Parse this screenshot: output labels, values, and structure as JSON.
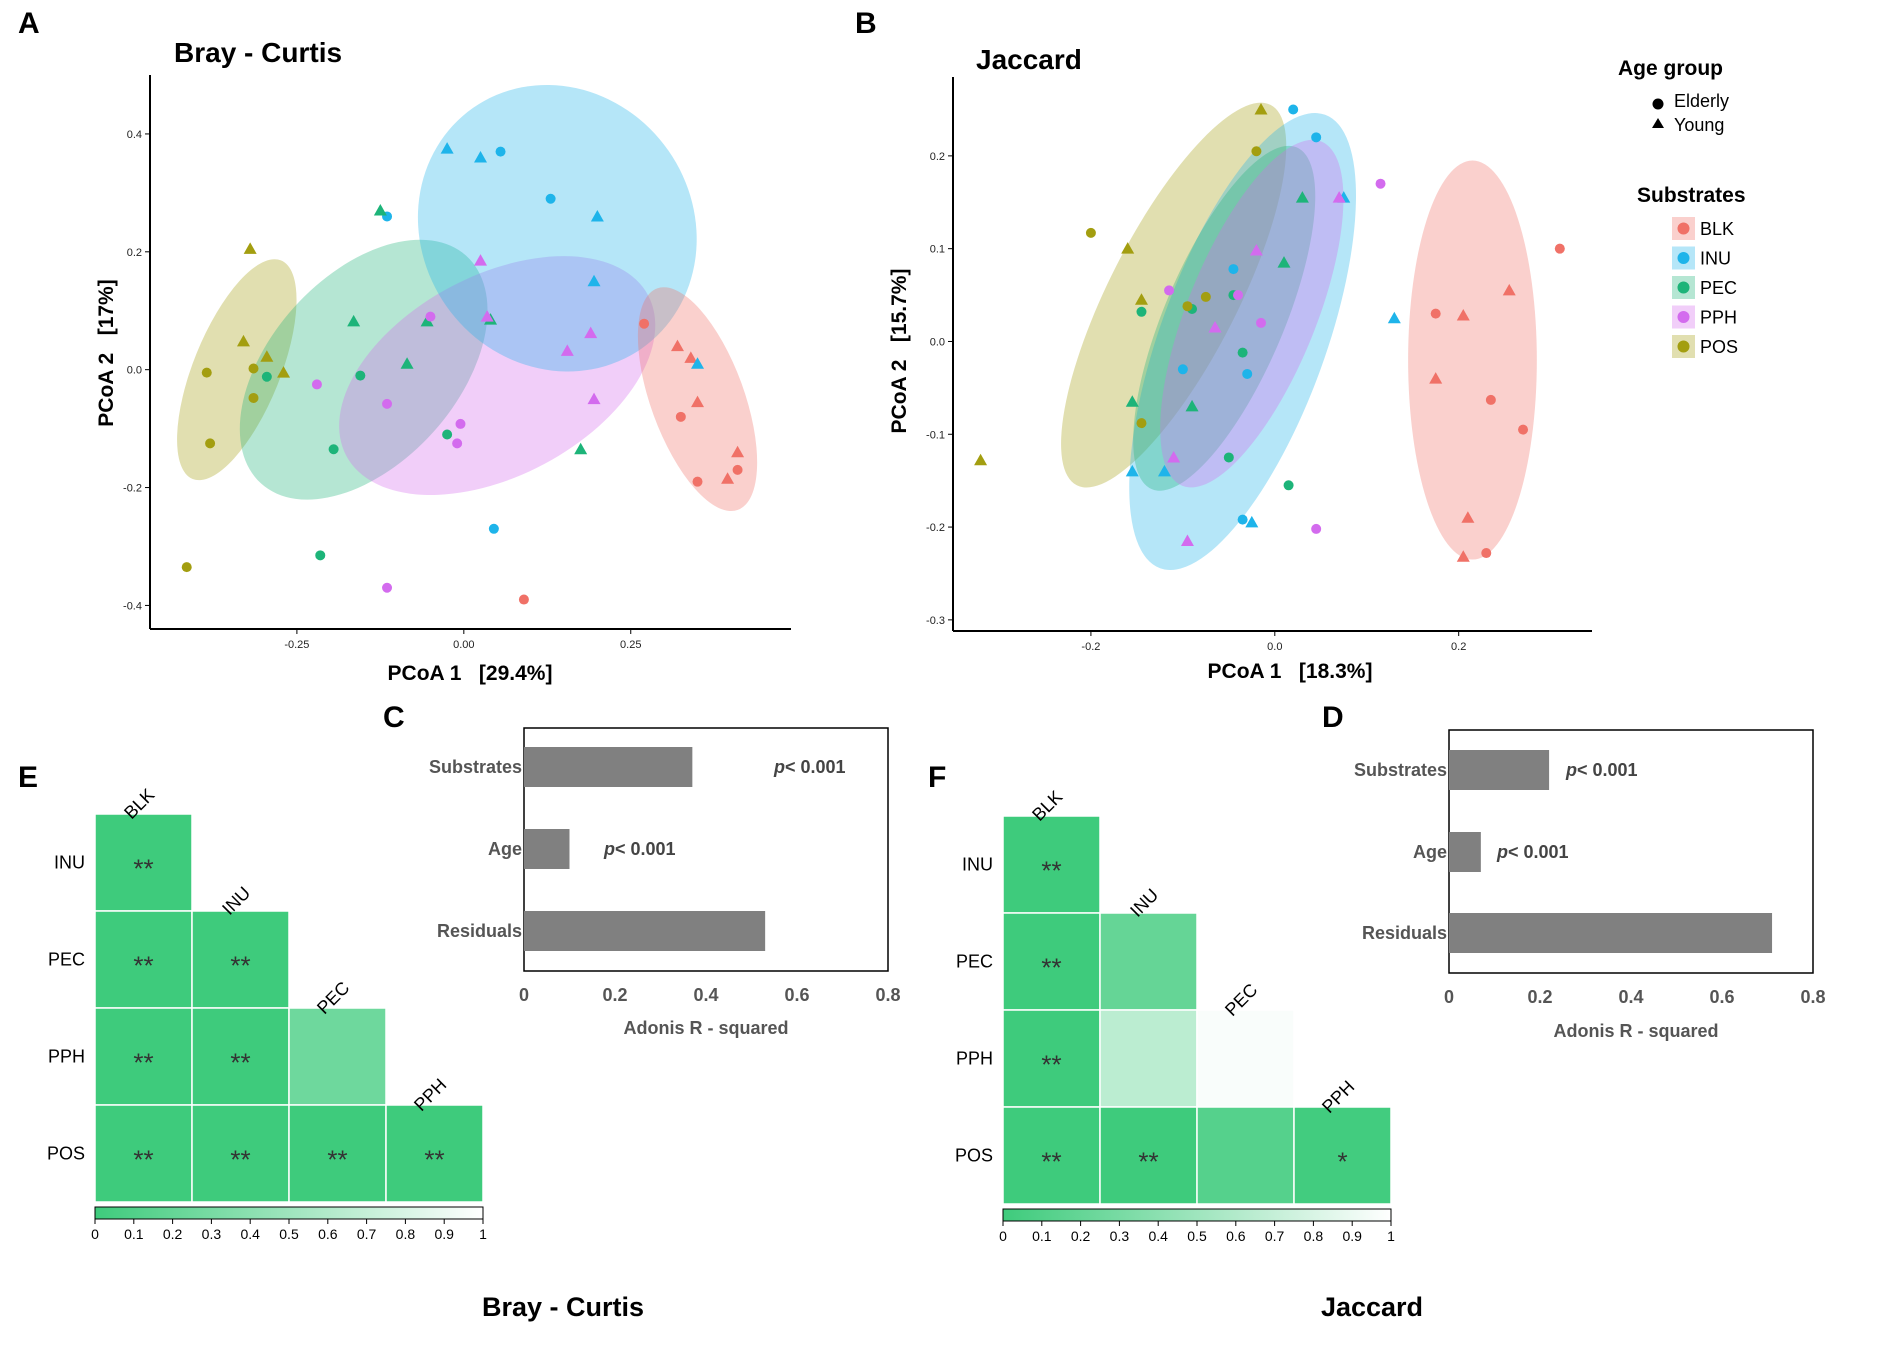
{
  "panel_letters": {
    "A": "A",
    "B": "B",
    "C": "C",
    "D": "D",
    "E": "E",
    "F": "F"
  },
  "colors": {
    "BLK": "#F07167",
    "INU": "#1EB4EA",
    "PEC": "#1DB479",
    "PPH": "#D36BEE",
    "POS": "#A39E10",
    "bar": "#808080",
    "heat_low": "#3ECB7C",
    "heat_high": "#FFFFFF"
  },
  "legend": {
    "age_title": "Age group",
    "age_items": [
      "Elderly",
      "Young"
    ],
    "sub_title": "Substrates",
    "sub_items": [
      "BLK",
      "INU",
      "PEC",
      "PPH",
      "POS"
    ]
  },
  "chart_data": [
    {
      "id": "A",
      "type": "scatter",
      "title": "Bray - Curtis",
      "xlabel": "PCoA 1   [29.4%]",
      "ylabel": "PCoA 2   [17%]",
      "xlim": [
        -0.47,
        0.49
      ],
      "ylim": [
        -0.44,
        0.5
      ],
      "xticks": [
        -0.25,
        0.0,
        0.25
      ],
      "xtick_labels": [
        "-0.25",
        "0.00",
        "0.25"
      ],
      "yticks": [
        -0.4,
        -0.2,
        0.0,
        0.2,
        0.4
      ],
      "ytick_labels": [
        "-0.4",
        "-0.2",
        "0.0",
        "0.2",
        "0.4"
      ],
      "ellipses": [
        {
          "group": "POS",
          "cx": -0.34,
          "cy": 0.0,
          "rx": 0.065,
          "ry": 0.2,
          "angle": 22
        },
        {
          "group": "PEC",
          "cx": -0.15,
          "cy": 0.0,
          "rx": 0.14,
          "ry": 0.26,
          "angle": 42
        },
        {
          "group": "PPH",
          "cx": 0.05,
          "cy": -0.01,
          "rx": 0.15,
          "ry": 0.29,
          "angle": 62
        },
        {
          "group": "INU",
          "cx": 0.14,
          "cy": 0.24,
          "rx": 0.22,
          "ry": 0.23,
          "angle": 55
        },
        {
          "group": "BLK",
          "cx": 0.35,
          "cy": -0.05,
          "rx": 0.07,
          "ry": 0.2,
          "angle": -20
        }
      ],
      "points": [
        {
          "group": "BLK",
          "age": "Young",
          "x": 0.32,
          "y": 0.04
        },
        {
          "group": "BLK",
          "age": "Young",
          "x": 0.34,
          "y": 0.02
        },
        {
          "group": "BLK",
          "age": "Elderly",
          "x": 0.325,
          "y": -0.08
        },
        {
          "group": "BLK",
          "age": "Young",
          "x": 0.35,
          "y": -0.055
        },
        {
          "group": "BLK",
          "age": "Young",
          "x": 0.41,
          "y": -0.14
        },
        {
          "group": "BLK",
          "age": "Elderly",
          "x": 0.41,
          "y": -0.17
        },
        {
          "group": "BLK",
          "age": "Young",
          "x": 0.395,
          "y": -0.185
        },
        {
          "group": "BLK",
          "age": "Elderly",
          "x": 0.35,
          "y": -0.19
        },
        {
          "group": "BLK",
          "age": "Elderly",
          "x": 0.27,
          "y": 0.078
        },
        {
          "group": "BLK",
          "age": "Elderly",
          "x": 0.09,
          "y": -0.39
        },
        {
          "group": "INU",
          "age": "Young",
          "x": -0.025,
          "y": 0.375
        },
        {
          "group": "INU",
          "age": "Young",
          "x": 0.025,
          "y": 0.36
        },
        {
          "group": "INU",
          "age": "Elderly",
          "x": 0.055,
          "y": 0.37
        },
        {
          "group": "INU",
          "age": "Elderly",
          "x": 0.13,
          "y": 0.29
        },
        {
          "group": "INU",
          "age": "Young",
          "x": 0.2,
          "y": 0.26
        },
        {
          "group": "INU",
          "age": "Elderly",
          "x": -0.115,
          "y": 0.26
        },
        {
          "group": "INU",
          "age": "Young",
          "x": 0.195,
          "y": 0.15
        },
        {
          "group": "INU",
          "age": "Young",
          "x": 0.35,
          "y": 0.01
        },
        {
          "group": "INU",
          "age": "Elderly",
          "x": 0.045,
          "y": -0.27
        },
        {
          "group": "PEC",
          "age": "Young",
          "x": -0.125,
          "y": 0.27
        },
        {
          "group": "PEC",
          "age": "Young",
          "x": -0.165,
          "y": 0.082
        },
        {
          "group": "PEC",
          "age": "Elderly",
          "x": -0.155,
          "y": -0.01
        },
        {
          "group": "PEC",
          "age": "Young",
          "x": -0.085,
          "y": 0.01
        },
        {
          "group": "PEC",
          "age": "Young",
          "x": -0.055,
          "y": 0.082
        },
        {
          "group": "PEC",
          "age": "Elderly",
          "x": -0.295,
          "y": -0.012
        },
        {
          "group": "PEC",
          "age": "Elderly",
          "x": -0.195,
          "y": -0.135
        },
        {
          "group": "PEC",
          "age": "Elderly",
          "x": -0.025,
          "y": -0.11
        },
        {
          "group": "PEC",
          "age": "Young",
          "x": 0.175,
          "y": -0.135
        },
        {
          "group": "PEC",
          "age": "Elderly",
          "x": -0.215,
          "y": -0.315
        },
        {
          "group": "PEC",
          "age": "Young",
          "x": 0.04,
          "y": 0.085
        },
        {
          "group": "PPH",
          "age": "Young",
          "x": 0.025,
          "y": 0.185
        },
        {
          "group": "PPH",
          "age": "Young",
          "x": 0.035,
          "y": 0.09
        },
        {
          "group": "PPH",
          "age": "Young",
          "x": 0.19,
          "y": 0.062
        },
        {
          "group": "PPH",
          "age": "Young",
          "x": 0.155,
          "y": 0.032
        },
        {
          "group": "PPH",
          "age": "Young",
          "x": 0.195,
          "y": -0.05
        },
        {
          "group": "PPH",
          "age": "Elderly",
          "x": -0.22,
          "y": -0.025
        },
        {
          "group": "PPH",
          "age": "Elderly",
          "x": -0.115,
          "y": -0.058
        },
        {
          "group": "PPH",
          "age": "Elderly",
          "x": -0.005,
          "y": -0.092
        },
        {
          "group": "PPH",
          "age": "Elderly",
          "x": -0.01,
          "y": -0.125
        },
        {
          "group": "PPH",
          "age": "Elderly",
          "x": -0.115,
          "y": -0.37
        },
        {
          "group": "PPH",
          "age": "Elderly",
          "x": -0.05,
          "y": 0.09
        },
        {
          "group": "POS",
          "age": "Young",
          "x": -0.32,
          "y": 0.205
        },
        {
          "group": "POS",
          "age": "Young",
          "x": -0.33,
          "y": 0.048
        },
        {
          "group": "POS",
          "age": "Young",
          "x": -0.295,
          "y": 0.022
        },
        {
          "group": "POS",
          "age": "Young",
          "x": -0.27,
          "y": -0.005
        },
        {
          "group": "POS",
          "age": "Elderly",
          "x": -0.385,
          "y": -0.005
        },
        {
          "group": "POS",
          "age": "Elderly",
          "x": -0.315,
          "y": 0.002
        },
        {
          "group": "POS",
          "age": "Elderly",
          "x": -0.315,
          "y": -0.048
        },
        {
          "group": "POS",
          "age": "Elderly",
          "x": -0.38,
          "y": -0.125
        },
        {
          "group": "POS",
          "age": "Elderly",
          "x": -0.415,
          "y": -0.335
        }
      ]
    },
    {
      "id": "B",
      "type": "scatter",
      "title": "Jaccard",
      "xlabel": "PCoA 1   [18.3%]",
      "ylabel": "PCoA 2   [15.7%]",
      "xlim": [
        -0.35,
        0.345
      ],
      "ylim": [
        -0.312,
        0.285
      ],
      "xticks": [
        -0.2,
        0.0,
        0.2
      ],
      "xtick_labels": [
        "-0.2",
        "0.0",
        "0.2"
      ],
      "yticks": [
        -0.3,
        -0.2,
        -0.1,
        0.0,
        0.1,
        0.2
      ],
      "ytick_labels": [
        "-0.3",
        "-0.2",
        "-0.1",
        "0.0",
        "0.1",
        "0.2"
      ],
      "ellipses": [
        {
          "group": "POS",
          "cx": -0.11,
          "cy": 0.05,
          "rx": 0.07,
          "ry": 0.23,
          "angle": 27
        },
        {
          "group": "INU",
          "cx": -0.035,
          "cy": 0.0,
          "rx": 0.09,
          "ry": 0.26,
          "angle": 20
        },
        {
          "group": "PEC",
          "cx": -0.055,
          "cy": 0.025,
          "rx": 0.065,
          "ry": 0.2,
          "angle": 23
        },
        {
          "group": "PPH",
          "cx": -0.025,
          "cy": 0.03,
          "rx": 0.07,
          "ry": 0.2,
          "angle": 22
        },
        {
          "group": "BLK",
          "cx": 0.215,
          "cy": -0.02,
          "rx": 0.07,
          "ry": 0.215,
          "angle": 0
        }
      ],
      "points": [
        {
          "group": "BLK",
          "age": "Elderly",
          "x": 0.31,
          "y": 0.1
        },
        {
          "group": "BLK",
          "age": "Young",
          "x": 0.255,
          "y": 0.055
        },
        {
          "group": "BLK",
          "age": "Elderly",
          "x": 0.175,
          "y": 0.03
        },
        {
          "group": "BLK",
          "age": "Young",
          "x": 0.205,
          "y": 0.028
        },
        {
          "group": "BLK",
          "age": "Young",
          "x": 0.175,
          "y": -0.04
        },
        {
          "group": "BLK",
          "age": "Elderly",
          "x": 0.235,
          "y": -0.063
        },
        {
          "group": "BLK",
          "age": "Elderly",
          "x": 0.27,
          "y": -0.095
        },
        {
          "group": "BLK",
          "age": "Young",
          "x": 0.21,
          "y": -0.19
        },
        {
          "group": "BLK",
          "age": "Young",
          "x": 0.205,
          "y": -0.232
        },
        {
          "group": "BLK",
          "age": "Elderly",
          "x": 0.23,
          "y": -0.228
        },
        {
          "group": "INU",
          "age": "Elderly",
          "x": 0.02,
          "y": 0.25
        },
        {
          "group": "INU",
          "age": "Elderly",
          "x": 0.045,
          "y": 0.22
        },
        {
          "group": "INU",
          "age": "Young",
          "x": 0.075,
          "y": 0.155
        },
        {
          "group": "INU",
          "age": "Young",
          "x": 0.13,
          "y": 0.025
        },
        {
          "group": "INU",
          "age": "Elderly",
          "x": -0.045,
          "y": 0.078
        },
        {
          "group": "INU",
          "age": "Elderly",
          "x": -0.1,
          "y": -0.03
        },
        {
          "group": "INU",
          "age": "Young",
          "x": -0.12,
          "y": -0.14
        },
        {
          "group": "INU",
          "age": "Young",
          "x": -0.155,
          "y": -0.14
        },
        {
          "group": "INU",
          "age": "Elderly",
          "x": -0.035,
          "y": -0.192
        },
        {
          "group": "INU",
          "age": "Young",
          "x": -0.025,
          "y": -0.195
        },
        {
          "group": "INU",
          "age": "Elderly",
          "x": -0.03,
          "y": -0.035
        },
        {
          "group": "PEC",
          "age": "Young",
          "x": 0.03,
          "y": 0.155
        },
        {
          "group": "PEC",
          "age": "Young",
          "x": 0.01,
          "y": 0.085
        },
        {
          "group": "PEC",
          "age": "Elderly",
          "x": -0.145,
          "y": 0.032
        },
        {
          "group": "PEC",
          "age": "Young",
          "x": -0.155,
          "y": -0.065
        },
        {
          "group": "PEC",
          "age": "Elderly",
          "x": -0.035,
          "y": -0.012
        },
        {
          "group": "PEC",
          "age": "Elderly",
          "x": -0.09,
          "y": 0.035
        },
        {
          "group": "PEC",
          "age": "Elderly",
          "x": -0.05,
          "y": -0.125
        },
        {
          "group": "PEC",
          "age": "Elderly",
          "x": 0.015,
          "y": -0.155
        },
        {
          "group": "PEC",
          "age": "Young",
          "x": -0.09,
          "y": -0.07
        },
        {
          "group": "PEC",
          "age": "Elderly",
          "x": -0.045,
          "y": 0.05
        },
        {
          "group": "PPH",
          "age": "Elderly",
          "x": 0.115,
          "y": 0.17
        },
        {
          "group": "PPH",
          "age": "Young",
          "x": 0.07,
          "y": 0.155
        },
        {
          "group": "PPH",
          "age": "Young",
          "x": -0.02,
          "y": 0.098
        },
        {
          "group": "PPH",
          "age": "Elderly",
          "x": -0.115,
          "y": 0.055
        },
        {
          "group": "PPH",
          "age": "Elderly",
          "x": -0.04,
          "y": 0.05
        },
        {
          "group": "PPH",
          "age": "Young",
          "x": -0.065,
          "y": 0.015
        },
        {
          "group": "PPH",
          "age": "Elderly",
          "x": -0.015,
          "y": 0.02
        },
        {
          "group": "PPH",
          "age": "Young",
          "x": -0.11,
          "y": -0.125
        },
        {
          "group": "PPH",
          "age": "Young",
          "x": -0.095,
          "y": -0.215
        },
        {
          "group": "PPH",
          "age": "Elderly",
          "x": 0.045,
          "y": -0.202
        },
        {
          "group": "POS",
          "age": "Young",
          "x": -0.015,
          "y": 0.25
        },
        {
          "group": "POS",
          "age": "Elderly",
          "x": -0.02,
          "y": 0.205
        },
        {
          "group": "POS",
          "age": "Elderly",
          "x": -0.2,
          "y": 0.117
        },
        {
          "group": "POS",
          "age": "Young",
          "x": -0.16,
          "y": 0.1
        },
        {
          "group": "POS",
          "age": "Young",
          "x": -0.145,
          "y": 0.045
        },
        {
          "group": "POS",
          "age": "Elderly",
          "x": -0.075,
          "y": 0.048
        },
        {
          "group": "POS",
          "age": "Elderly",
          "x": -0.095,
          "y": 0.038
        },
        {
          "group": "POS",
          "age": "Elderly",
          "x": -0.145,
          "y": -0.088
        },
        {
          "group": "POS",
          "age": "Young",
          "x": -0.32,
          "y": -0.128
        }
      ]
    },
    {
      "id": "C",
      "type": "bar",
      "orientation": "horizontal",
      "categories": [
        "Substrates",
        "Age",
        "Residuals"
      ],
      "values": [
        0.37,
        0.1,
        0.53
      ],
      "annotations": [
        "< 0.001",
        "< 0.001",
        ""
      ],
      "p_symbol": "p",
      "xlabel": "Adonis R - squared",
      "xlim": [
        0,
        0.8
      ],
      "xticks": [
        0,
        0.2,
        0.4,
        0.6,
        0.8
      ],
      "xtick_labels": [
        "0",
        "0.2",
        "0.4",
        "0.6",
        "0.8"
      ]
    },
    {
      "id": "D",
      "type": "bar",
      "orientation": "horizontal",
      "categories": [
        "Substrates",
        "Age",
        "Residuals"
      ],
      "values": [
        0.22,
        0.07,
        0.71
      ],
      "annotations": [
        "< 0.001",
        "< 0.001",
        ""
      ],
      "p_symbol": "p",
      "xlabel": "Adonis R - squared",
      "xlim": [
        0,
        0.8
      ],
      "xticks": [
        0,
        0.2,
        0.4,
        0.6,
        0.8
      ],
      "xtick_labels": [
        "0",
        "0.2",
        "0.4",
        "0.6",
        "0.8"
      ]
    },
    {
      "id": "E",
      "type": "heatmap",
      "title": "Bray - Curtis",
      "rows": [
        "INU",
        "PEC",
        "PPH",
        "POS"
      ],
      "cols": [
        "BLK",
        "INU",
        "PEC",
        "PPH"
      ],
      "values": [
        [
          0.001,
          null,
          null,
          null
        ],
        [
          0.001,
          0.001,
          null,
          null
        ],
        [
          0.001,
          0.001,
          0.25,
          null
        ],
        [
          0.001,
          0.001,
          0.001,
          0.001
        ]
      ],
      "labels": [
        [
          "**",
          "",
          "",
          ""
        ],
        [
          "**",
          "**",
          "",
          ""
        ],
        [
          "**",
          "**",
          "",
          ""
        ],
        [
          "**",
          "**",
          "**",
          "**"
        ]
      ],
      "colorbar_ticks": [
        "0",
        "0.1",
        "0.2",
        "0.3",
        "0.4",
        "0.5",
        "0.6",
        "0.7",
        "0.8",
        "0.9",
        "1"
      ]
    },
    {
      "id": "F",
      "type": "heatmap",
      "title": "Jaccard",
      "rows": [
        "INU",
        "PEC",
        "PPH",
        "POS"
      ],
      "cols": [
        "BLK",
        "INU",
        "PEC",
        "PPH"
      ],
      "values": [
        [
          0.001,
          null,
          null,
          null
        ],
        [
          0.001,
          0.2,
          null,
          null
        ],
        [
          0.001,
          0.65,
          0.97,
          null
        ],
        [
          0.001,
          0.001,
          0.12,
          0.02
        ]
      ],
      "labels": [
        [
          "**",
          "",
          "",
          ""
        ],
        [
          "**",
          "",
          "",
          ""
        ],
        [
          "**",
          "",
          "",
          ""
        ],
        [
          "**",
          "**",
          "",
          "*"
        ]
      ],
      "colorbar_ticks": [
        "0",
        "0.1",
        "0.2",
        "0.3",
        "0.4",
        "0.5",
        "0.6",
        "0.7",
        "0.8",
        "0.9",
        "1"
      ]
    }
  ]
}
